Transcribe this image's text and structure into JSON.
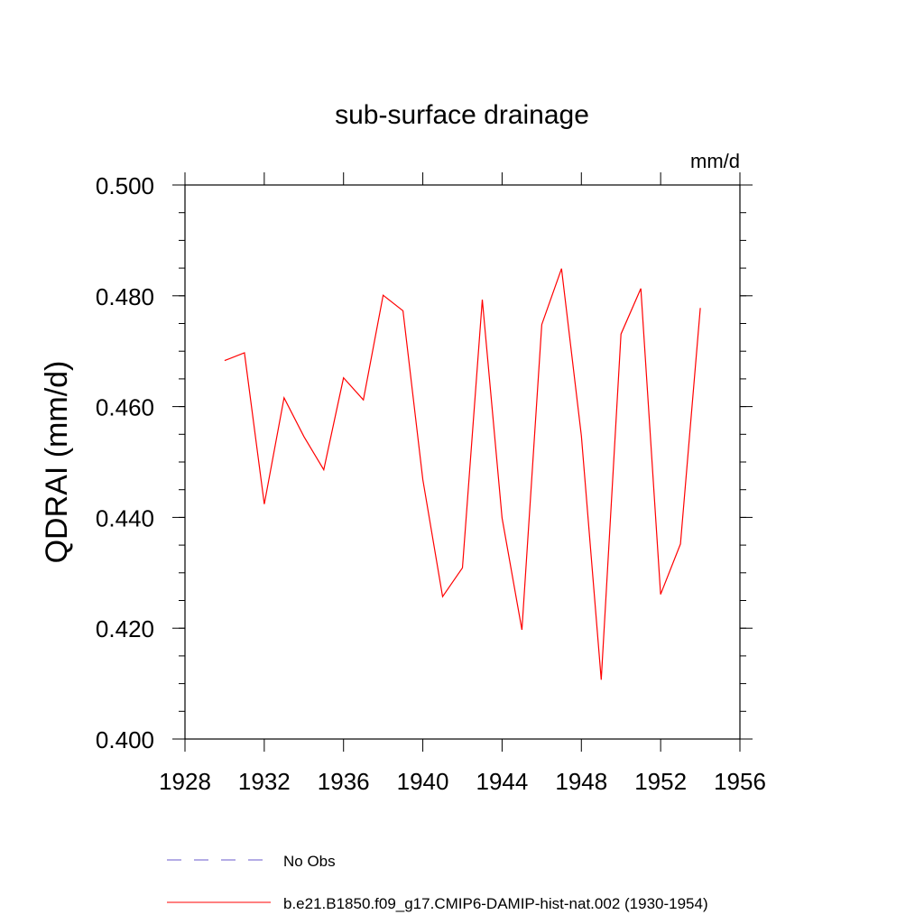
{
  "chart_data": {
    "type": "line",
    "title": "sub-surface drainage",
    "units": "mm/d",
    "ylabel": "QDRAI  (mm/d)",
    "xlabel": "",
    "xlim": [
      1928,
      1956
    ],
    "ylim": [
      0.4,
      0.5
    ],
    "x_ticks": [
      1928,
      1932,
      1936,
      1940,
      1944,
      1948,
      1952,
      1956
    ],
    "x_tick_labels": [
      "1928",
      "1932",
      "1936",
      "1940",
      "1944",
      "1948",
      "1952",
      "1956"
    ],
    "y_ticks": [
      0.4,
      0.42,
      0.44,
      0.46,
      0.48,
      0.5
    ],
    "y_tick_labels": [
      "0.400",
      "0.420",
      "0.440",
      "0.460",
      "0.480",
      "0.500"
    ],
    "grid": false,
    "legend_position": "bottom",
    "series": [
      {
        "name": "No Obs",
        "color": "#6a5acd",
        "dash": "dashed",
        "x": [],
        "values": []
      },
      {
        "name": "b.e21.B1850.f09_g17.CMIP6-DAMIP-hist-nat.002 (1930-1954)",
        "color": "#ff0000",
        "dash": "solid",
        "x": [
          1930,
          1931,
          1932,
          1933,
          1934,
          1935,
          1936,
          1937,
          1938,
          1939,
          1940,
          1941,
          1942,
          1943,
          1944,
          1945,
          1946,
          1947,
          1948,
          1949,
          1950,
          1951,
          1952,
          1953,
          1954
        ],
        "values": [
          0.4683,
          0.4697,
          0.4424,
          0.4616,
          0.4546,
          0.4486,
          0.4652,
          0.4612,
          0.4801,
          0.4773,
          0.4468,
          0.4257,
          0.4309,
          0.4793,
          0.4399,
          0.4197,
          0.4748,
          0.4849,
          0.4547,
          0.4107,
          0.4731,
          0.4813,
          0.4261,
          0.4352,
          0.4778
        ]
      }
    ]
  }
}
